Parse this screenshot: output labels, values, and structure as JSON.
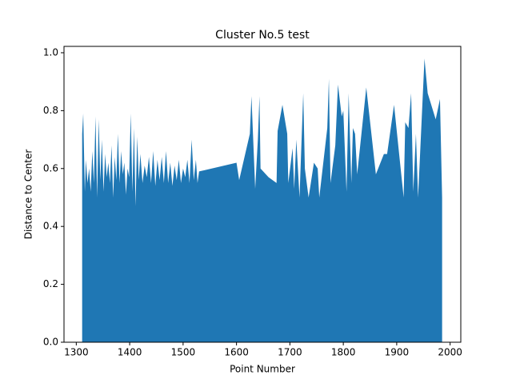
{
  "chart_data": {
    "type": "area",
    "title": "Cluster No.5 test",
    "x_label": "Point Number",
    "y_label": "Distance to Center",
    "color": "#1f77b4",
    "x": [
      1311,
      1313,
      1316,
      1318,
      1321,
      1324,
      1327,
      1330,
      1333,
      1336,
      1339,
      1342,
      1345,
      1348,
      1351,
      1354,
      1357,
      1360,
      1363,
      1366,
      1369,
      1372,
      1375,
      1378,
      1381,
      1384,
      1387,
      1390,
      1393,
      1396,
      1399,
      1402,
      1405,
      1408,
      1411,
      1414,
      1417,
      1420,
      1424,
      1428,
      1432,
      1436,
      1440,
      1444,
      1448,
      1452,
      1456,
      1460,
      1464,
      1468,
      1472,
      1476,
      1480,
      1484,
      1488,
      1492,
      1496,
      1500,
      1504,
      1508,
      1512,
      1516,
      1520,
      1524,
      1527,
      1530,
      1600,
      1605,
      1625,
      1628,
      1635,
      1640,
      1643,
      1645,
      1660,
      1675,
      1677,
      1686,
      1695,
      1697,
      1705,
      1708,
      1712,
      1718,
      1725,
      1728,
      1735,
      1745,
      1752,
      1755,
      1770,
      1773,
      1776,
      1785,
      1790,
      1797,
      1800,
      1806,
      1810,
      1815,
      1818,
      1822,
      1826,
      1843,
      1861,
      1876,
      1882,
      1895,
      1913,
      1916,
      1922,
      1927,
      1931,
      1936,
      1940,
      1952,
      1958,
      1973,
      1981,
      1985
    ],
    "values": [
      0.72,
      0.79,
      0.52,
      0.63,
      0.55,
      0.6,
      0.52,
      0.66,
      0.55,
      0.78,
      0.5,
      0.77,
      0.56,
      0.7,
      0.52,
      0.65,
      0.57,
      0.62,
      0.55,
      0.68,
      0.5,
      0.64,
      0.56,
      0.72,
      0.55,
      0.66,
      0.58,
      0.62,
      0.51,
      0.6,
      0.57,
      0.79,
      0.52,
      0.74,
      0.47,
      0.71,
      0.56,
      0.65,
      0.55,
      0.61,
      0.57,
      0.64,
      0.55,
      0.66,
      0.54,
      0.63,
      0.56,
      0.64,
      0.55,
      0.66,
      0.55,
      0.62,
      0.54,
      0.61,
      0.56,
      0.63,
      0.55,
      0.6,
      0.57,
      0.63,
      0.55,
      0.7,
      0.56,
      0.63,
      0.55,
      0.59,
      0.62,
      0.56,
      0.72,
      0.85,
      0.53,
      0.7,
      0.85,
      0.6,
      0.57,
      0.55,
      0.73,
      0.82,
      0.72,
      0.55,
      0.67,
      0.53,
      0.7,
      0.5,
      0.86,
      0.6,
      0.5,
      0.62,
      0.6,
      0.5,
      0.74,
      0.91,
      0.55,
      0.68,
      0.89,
      0.78,
      0.8,
      0.52,
      0.86,
      0.55,
      0.74,
      0.72,
      0.58,
      0.88,
      0.58,
      0.65,
      0.65,
      0.82,
      0.5,
      0.76,
      0.74,
      0.86,
      0.52,
      0.72,
      0.5,
      0.98,
      0.86,
      0.77,
      0.84,
      0.5
    ],
    "xlim": [
      1277,
      2020
    ],
    "ylim": [
      0,
      1.022
    ],
    "xticks": [
      1300,
      1400,
      1500,
      1600,
      1700,
      1800,
      1900,
      2000
    ],
    "yticks": [
      {
        "value": 0,
        "label": "0.0"
      },
      0.2,
      0.4,
      0.6,
      0.8,
      {
        "value": 1,
        "label": "1.0"
      }
    ]
  }
}
